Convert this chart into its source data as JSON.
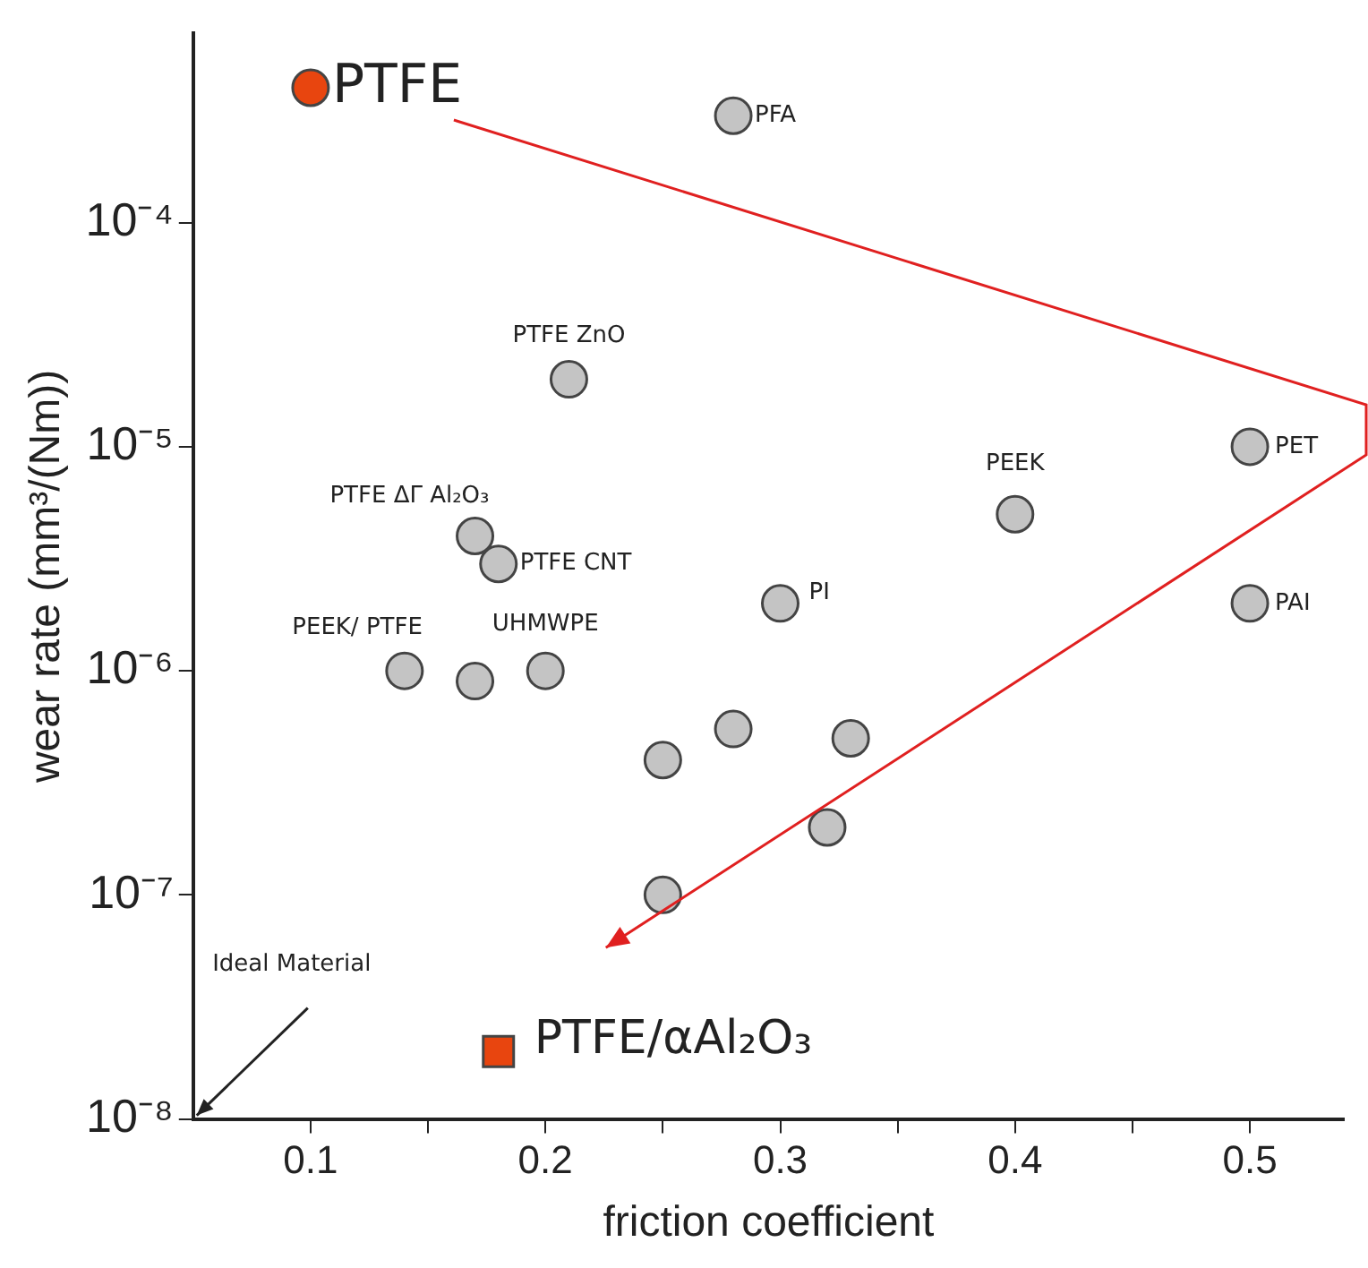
{
  "chart_data": {
    "type": "scatter",
    "xlabel": "friction coefficient",
    "ylabel": "wear rate (mm³/(Nm))",
    "log": "y",
    "grid": false,
    "legend": false,
    "marker": "circle",
    "xlim": [
      0.05,
      0.54
    ],
    "xticks": [
      0.1,
      {
        "value": 0.15,
        "label": null
      },
      0.2,
      {
        "value": 0.25,
        "label": null
      },
      0.3,
      {
        "value": 0.35,
        "label": null
      },
      0.4,
      {
        "value": 0.45,
        "label": null
      },
      0.5
    ],
    "ylim": [
      1e-08,
      0.0007
    ],
    "yticks": [
      {
        "value": 1e-08,
        "label": "10⁻⁸"
      },
      {
        "value": 1e-07,
        "label": "10⁻⁷"
      },
      {
        "value": 1e-06,
        "label": "10⁻⁶"
      },
      {
        "value": 1e-05,
        "label": "10⁻⁵"
      },
      {
        "value": 0.0001,
        "label": "10⁻⁴"
      }
    ],
    "series": [
      {
        "color": "#c4c4c4",
        "x": [
          0.28,
          0.21,
          0.5,
          0.4,
          0.17,
          0.18,
          0.3,
          0.5,
          0.14,
          0.17,
          0.2,
          0.28,
          0.25,
          0.33,
          0.32,
          0.25
        ],
        "values": [
          0.0003,
          2e-05,
          1e-05,
          5e-06,
          4e-06,
          3e-06,
          2e-06,
          2e-06,
          1e-06,
          9e-07,
          1e-06,
          5.5e-07,
          4e-07,
          5e-07,
          2e-07,
          1e-07
        ]
      },
      {
        "color": "#e8450f",
        "x": [
          0.1
        ],
        "values": [
          0.0004
        ]
      },
      {
        "color": "#e8450f",
        "marker": "square",
        "x": [
          0.18
        ],
        "values": [
          2e-08
        ]
      }
    ],
    "annotations": [
      {
        "text": "PTFE",
        "x": 0.1,
        "y": 0.0004
      },
      {
        "text": "PFA",
        "x": 0.28,
        "y": 0.0003
      },
      {
        "text": "PTFE ZnO",
        "x": 0.21,
        "y": 2e-05
      },
      {
        "text": "PET",
        "x": 0.5,
        "y": 1e-05
      },
      {
        "text": "PEEK",
        "x": 0.4,
        "y": 5e-06
      },
      {
        "text": "PTFE ΔΓ Al₂O₃",
        "x": 0.17,
        "y": 4e-06
      },
      {
        "text": "PTFE CNT",
        "x": 0.18,
        "y": 3e-06
      },
      {
        "text": "PI",
        "x": 0.3,
        "y": 2e-06
      },
      {
        "text": "PAI",
        "x": 0.5,
        "y": 2e-06
      },
      {
        "text": "PEEK/ PTFE",
        "x": 0.14,
        "y": 1e-06
      },
      {
        "text": "UHMWPE",
        "x": 0.2,
        "y": 1e-06
      },
      {
        "text": "PTFE/αAl₂O₃",
        "x": 0.18,
        "y": 2e-08
      },
      "Ideal Material"
    ]
  }
}
